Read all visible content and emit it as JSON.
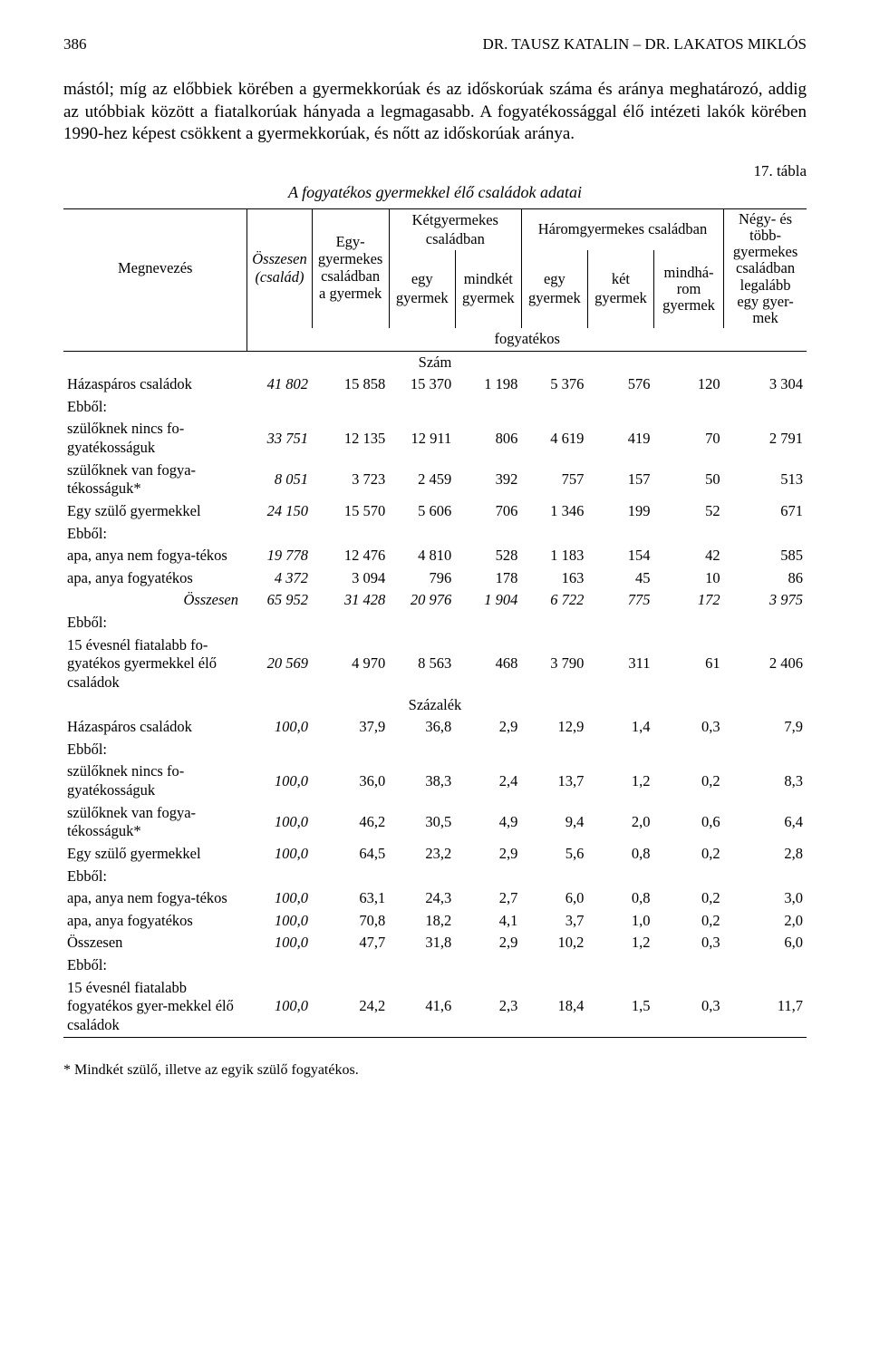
{
  "header": {
    "page_num": "386",
    "running_title": "DR. TAUSZ KATALIN – DR. LAKATOS MIKLÓS"
  },
  "paragraph": "mástól; míg az előbbiek körében a gyermekkorúak és az időskorúak száma és aránya meghatározó, addig az utóbbiak között a fiatalkorúak hányada a legmagasabb. A fogyatékossággal élő intézeti lakók körében 1990-hez képest csökkent a gyermekkorúak, és nőtt az időskorúak aránya.",
  "table_number": "17. tábla",
  "table_title": "A fogyatékos gyermekkel élő családok adatai",
  "head": {
    "megnevezes": "Megnevezés",
    "osszesen": "Összesen (család)",
    "egygyermekes": "Egy-gyermekes családban a gyermek",
    "ket_group": "Kétgyermekes családban",
    "ket_a": "egy gyermek",
    "ket_b": "mindkét gyermek",
    "harom_group": "Háromgyermekes családban",
    "harom_a": "egy gyermek",
    "harom_b": "két gyermek",
    "harom_c": "mindhá-rom gyermek",
    "negy": "Négy- és több-gyermekes családban legalább egy gyer-mek",
    "fogyatekos": "fogyatékos"
  },
  "sections": {
    "szam": "Szám",
    "szazalek": "Százalék"
  },
  "labels": {
    "hazasparos": "Házaspáros családok",
    "ebbol": "Ebből:",
    "szulok_nincs": "szülőknek nincs fo-gyatékosságuk",
    "szulok_van": "szülőknek van fogya-tékosságuk*",
    "egy_szulo": "Egy szülő gyermekkel",
    "apa_nem": "apa, anya nem fogya-tékos",
    "apa_fogy": "apa, anya fogyatékos",
    "osszesen_row": "Összesen",
    "fiatal": "15 évesnél fiatalabb fo-gyatékos gyermekkel élő családok",
    "fiatal2": "15 évesnél fiatalabb fogyatékos gyer-mekkel élő családok"
  },
  "szam": {
    "hazasparos": [
      "41 802",
      "15 858",
      "15 370",
      "1 198",
      "5 376",
      "576",
      "120",
      "3 304"
    ],
    "szulok_nincs": [
      "33 751",
      "12 135",
      "12 911",
      "806",
      "4 619",
      "419",
      "70",
      "2 791"
    ],
    "szulok_van": [
      "8 051",
      "3 723",
      "2 459",
      "392",
      "757",
      "157",
      "50",
      "513"
    ],
    "egy_szulo": [
      "24 150",
      "15 570",
      "5 606",
      "706",
      "1 346",
      "199",
      "52",
      "671"
    ],
    "apa_nem": [
      "19 778",
      "12 476",
      "4 810",
      "528",
      "1 183",
      "154",
      "42",
      "585"
    ],
    "apa_fogy": [
      "4 372",
      "3 094",
      "796",
      "178",
      "163",
      "45",
      "10",
      "86"
    ],
    "osszesen": [
      "65 952",
      "31 428",
      "20 976",
      "1 904",
      "6 722",
      "775",
      "172",
      "3 975"
    ],
    "fiatal": [
      "20 569",
      "4 970",
      "8 563",
      "468",
      "3 790",
      "311",
      "61",
      "2 406"
    ]
  },
  "szazalek": {
    "hazasparos": [
      "100,0",
      "37,9",
      "36,8",
      "2,9",
      "12,9",
      "1,4",
      "0,3",
      "7,9"
    ],
    "szulok_nincs": [
      "100,0",
      "36,0",
      "38,3",
      "2,4",
      "13,7",
      "1,2",
      "0,2",
      "8,3"
    ],
    "szulok_van": [
      "100,0",
      "46,2",
      "30,5",
      "4,9",
      "9,4",
      "2,0",
      "0,6",
      "6,4"
    ],
    "egy_szulo": [
      "100,0",
      "64,5",
      "23,2",
      "2,9",
      "5,6",
      "0,8",
      "0,2",
      "2,8"
    ],
    "apa_nem": [
      "100,0",
      "63,1",
      "24,3",
      "2,7",
      "6,0",
      "0,8",
      "0,2",
      "3,0"
    ],
    "apa_fogy": [
      "100,0",
      "70,8",
      "18,2",
      "4,1",
      "3,7",
      "1,0",
      "0,2",
      "2,0"
    ],
    "osszesen": [
      "100,0",
      "47,7",
      "31,8",
      "2,9",
      "10,2",
      "1,2",
      "0,3",
      "6,0"
    ],
    "fiatal": [
      "100,0",
      "24,2",
      "41,6",
      "2,3",
      "18,4",
      "1,5",
      "0,3",
      "11,7"
    ]
  },
  "footnote": "* Mindkét szülő, illetve az egyik szülő fogyatékos."
}
